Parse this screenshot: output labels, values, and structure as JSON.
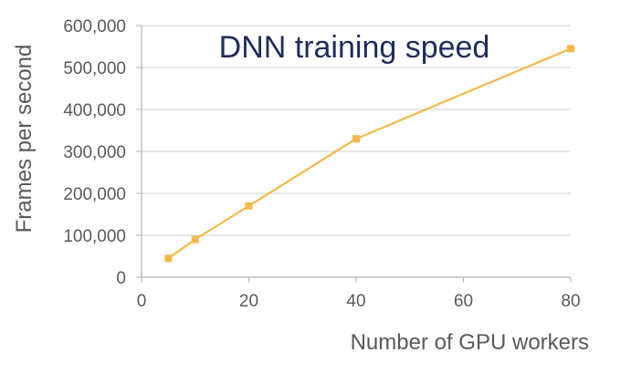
{
  "chart_data": {
    "type": "line",
    "title": "DNN training speed",
    "xlabel": "Number of GPU workers",
    "ylabel": "Frames per second",
    "xlim": [
      0,
      80
    ],
    "ylim": [
      0,
      600000
    ],
    "x_ticks": [
      0,
      20,
      40,
      60,
      80
    ],
    "x_tick_labels": [
      "0",
      "20",
      "40",
      "60",
      "80"
    ],
    "y_ticks": [
      0,
      100000,
      200000,
      300000,
      400000,
      500000,
      600000
    ],
    "y_tick_labels": [
      "0",
      "100,000",
      "200,000",
      "300,000",
      "400,000",
      "500,000",
      "600,000"
    ],
    "grid": "horizontal",
    "legend": "none",
    "series": [
      {
        "color": "#f4b94a",
        "marker": "square",
        "x": [
          5,
          10,
          20,
          40,
          80
        ],
        "y": [
          45000,
          90000,
          170000,
          330000,
          545000
        ]
      }
    ],
    "colors": {
      "gridline": "#d9d9d9",
      "axis": "#bfbfbf",
      "tick_text": "#595959",
      "title": "#1f2d5c"
    }
  }
}
